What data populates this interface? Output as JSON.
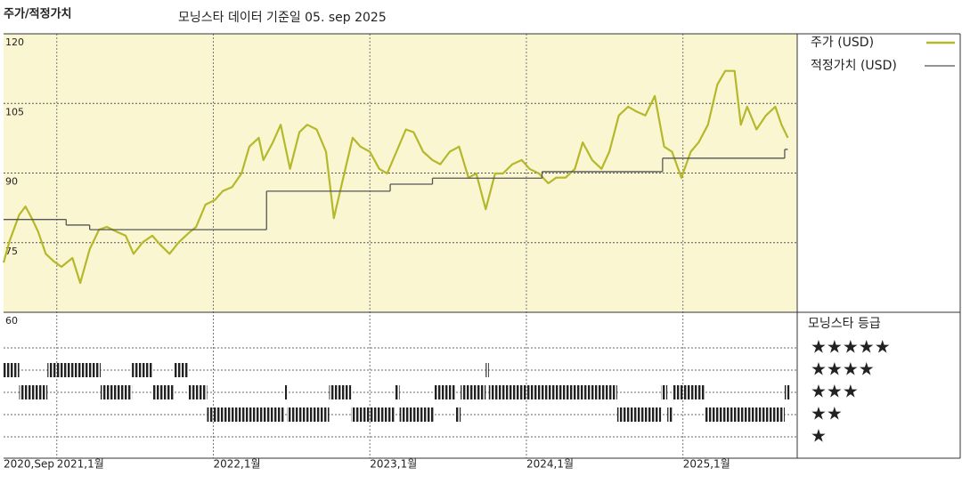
{
  "chart_data": {
    "type": "line",
    "title": "주가/적정가치",
    "subtitle": "모닝스타 데이터 기준일 05. sep 2025",
    "xlim": [
      2020.66,
      2025.73
    ],
    "xticks": [
      {
        "value": 2020.66,
        "label": "2020,Sep"
      },
      {
        "value": 2021,
        "label": "2021,1월"
      },
      {
        "value": 2022,
        "label": "2022,1월"
      },
      {
        "value": 2023,
        "label": "2023,1월"
      },
      {
        "value": 2024,
        "label": "2024,1월"
      },
      {
        "value": 2025,
        "label": "2025,1월"
      }
    ],
    "ylim": [
      60,
      120
    ],
    "yticks": [
      60,
      75,
      90,
      105,
      120
    ],
    "grid": true,
    "series": [
      {
        "name": "주가 (USD)",
        "color": "#b5b82a",
        "x": [
          2020.66,
          2020.7,
          2020.76,
          2020.8,
          2020.84,
          2020.88,
          2020.93,
          2020.98,
          2021.03,
          2021.1,
          2021.15,
          2021.21,
          2021.27,
          2021.32,
          2021.38,
          2021.44,
          2021.49,
          2021.55,
          2021.61,
          2021.66,
          2021.72,
          2021.78,
          2021.84,
          2021.89,
          2021.95,
          2022.01,
          2022.06,
          2022.12,
          2022.18,
          2022.23,
          2022.29,
          2022.32,
          2022.38,
          2022.43,
          2022.49,
          2022.55,
          2022.6,
          2022.66,
          2022.72,
          2022.77,
          2022.83,
          2022.89,
          2022.94,
          2023.0,
          2023.06,
          2023.11,
          2023.17,
          2023.23,
          2023.28,
          2023.34,
          2023.4,
          2023.45,
          2023.51,
          2023.57,
          2023.63,
          2023.68,
          2023.74,
          2023.8,
          2023.85,
          2023.91,
          2023.97,
          2024.02,
          2024.08,
          2024.14,
          2024.19,
          2024.25,
          2024.31,
          2024.36,
          2024.42,
          2024.48,
          2024.53,
          2024.59,
          2024.65,
          2024.7,
          2024.76,
          2024.82,
          2024.88,
          2024.93,
          2024.99,
          2025.05,
          2025.1,
          2025.16,
          2025.22,
          2025.27,
          2025.33,
          2025.37,
          2025.41,
          2025.47,
          2025.53,
          2025.59,
          2025.63,
          2025.67
        ],
        "values": [
          70.7,
          75.5,
          81,
          82.8,
          80.3,
          77.4,
          72.6,
          71,
          69.8,
          71.7,
          66.3,
          73.6,
          77.8,
          78.4,
          77.4,
          76.5,
          72.6,
          75.1,
          76.5,
          74.6,
          72.6,
          75.1,
          77,
          78.4,
          83.2,
          84.2,
          86.1,
          87,
          89.9,
          95.7,
          97.6,
          92.8,
          96.6,
          100.4,
          90.9,
          98.8,
          100.4,
          99.4,
          94.6,
          80.3,
          89,
          97.6,
          95.7,
          94.6,
          90.9,
          89.9,
          94.6,
          99.4,
          98.8,
          94.6,
          92.8,
          91.9,
          94.6,
          95.7,
          89,
          89.9,
          82.2,
          89.9,
          89.9,
          91.9,
          92.8,
          90.9,
          89.9,
          87.8,
          89,
          89,
          90.9,
          96.6,
          92.8,
          90.9,
          94.6,
          102.4,
          104.3,
          103.3,
          102.4,
          106.6,
          95.7,
          94.6,
          89,
          94.6,
          96.6,
          100.4,
          109.1,
          112,
          112,
          100.4,
          104.3,
          99.4,
          102.4,
          104.3,
          100.4,
          97.6
        ]
      },
      {
        "name": "적정가치 (USD)",
        "color": "#555555",
        "step": true,
        "x": [
          2020.66,
          2021.06,
          2021.21,
          2022.34,
          2023.13,
          2023.4,
          2024.1,
          2024.87,
          2025.65,
          2025.67
        ],
        "values": [
          80,
          78.8,
          77.8,
          86.1,
          87.6,
          88.9,
          90.3,
          93.2,
          95.1,
          95.1
        ]
      }
    ],
    "rating_title": "모닝스타 등급",
    "rating_labels": [
      "★★★★★",
      "★★★★",
      "★★★",
      "★★",
      "★"
    ],
    "rating_edges": [
      2020.66,
      2020.76,
      2020.94,
      2021.28,
      2021.48,
      2021.61,
      2021.75,
      2021.84,
      2021.96,
      2022.45,
      2022.47,
      2022.74,
      2022.88,
      2023.16,
      2023.19,
      2023.41,
      2023.55,
      2023.58,
      2023.74,
      2023.76,
      2024.58,
      2024.86,
      2024.9,
      2024.93,
      2025.14,
      2025.65,
      2025.68
    ],
    "ratings": [
      4,
      3,
      4,
      3,
      4,
      3,
      4,
      3,
      2,
      3,
      2,
      3,
      2,
      3,
      2,
      3,
      2,
      3,
      4,
      3,
      2,
      3,
      2,
      3,
      2,
      3
    ]
  }
}
